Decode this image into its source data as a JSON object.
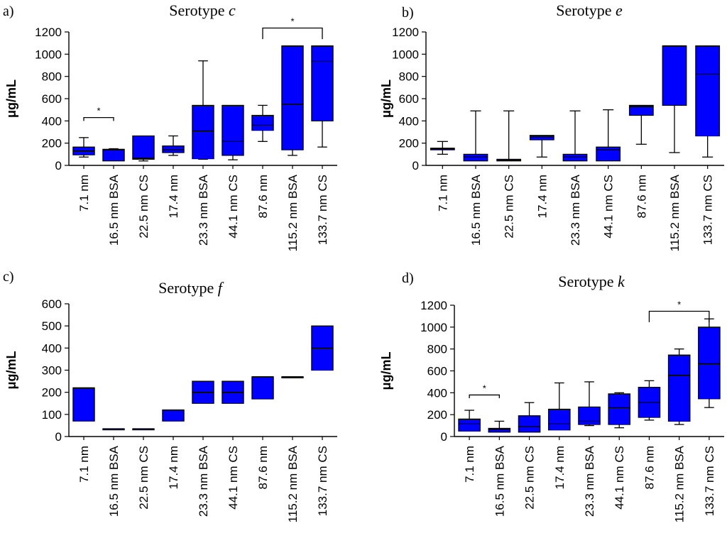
{
  "chart_data": [
    {
      "type": "box",
      "panel_label": "a)",
      "title_prefix": "Serotype ",
      "title_italic": "c",
      "ylabel": "μg/mL",
      "ylim": [
        0,
        1200
      ],
      "yticks": [
        "0",
        "200",
        "400",
        "600",
        "800",
        "1000",
        "1200"
      ],
      "categories": [
        "7.1 nm",
        "16.5 nm BSA",
        "22.5 nm CS",
        "17.4 nm",
        "23.3 nm BSA",
        "44.1 nm CS",
        "87.6 nm",
        "115.2 nm BSA",
        "133.7 nm CS"
      ],
      "boxes": [
        {
          "min": 75,
          "q1": 95,
          "median": 130,
          "q3": 165,
          "max": 250
        },
        {
          "min": 40,
          "q1": 40,
          "median": 140,
          "q3": 145,
          "max": 150
        },
        {
          "min": 40,
          "q1": 55,
          "median": 65,
          "q3": 265,
          "max": 265
        },
        {
          "min": 90,
          "q1": 115,
          "median": 140,
          "q3": 175,
          "max": 265
        },
        {
          "min": 55,
          "q1": 60,
          "median": 310,
          "q3": 540,
          "max": 940
        },
        {
          "min": 50,
          "q1": 90,
          "median": 215,
          "q3": 540,
          "max": 540
        },
        {
          "min": 215,
          "q1": 315,
          "median": 365,
          "q3": 450,
          "max": 540
        },
        {
          "min": 90,
          "q1": 140,
          "median": 550,
          "q3": 1075,
          "max": 1075
        },
        {
          "min": 165,
          "q1": 400,
          "median": 940,
          "q3": 1075,
          "max": 1075
        }
      ],
      "significance": [
        {
          "from": 0,
          "to": 1,
          "level": 430,
          "drop": 30,
          "label": "*"
        },
        {
          "from": 6,
          "to": 8,
          "level": 1235,
          "drop": 100,
          "label": "*"
        }
      ]
    },
    {
      "type": "box",
      "panel_label": "b)",
      "title_prefix": "Serotype ",
      "title_italic": "e",
      "ylabel": "μg/mL",
      "ylim": [
        0,
        1200
      ],
      "yticks": [
        "0",
        "200",
        "400",
        "600",
        "800",
        "1000",
        "1200"
      ],
      "categories": [
        "7.1 nm",
        "16.5 nm BSA",
        "22.5 nm CS",
        "17.4 nm",
        "23.3 nm BSA",
        "44.1 nm CS",
        "87.6 nm",
        "115.2 nm BSA",
        "133.7 nm CS"
      ],
      "boxes": [
        {
          "min": 100,
          "q1": 140,
          "median": 150,
          "q3": 155,
          "max": 215
        },
        {
          "min": 40,
          "q1": 40,
          "median": 75,
          "q3": 100,
          "max": 490
        },
        {
          "min": 40,
          "q1": 40,
          "median": 45,
          "q3": 55,
          "max": 490
        },
        {
          "min": 75,
          "q1": 230,
          "median": 255,
          "q3": 270,
          "max": 270
        },
        {
          "min": 40,
          "q1": 40,
          "median": 75,
          "q3": 100,
          "max": 490
        },
        {
          "min": 40,
          "q1": 40,
          "median": 140,
          "q3": 165,
          "max": 500
        },
        {
          "min": 190,
          "q1": 450,
          "median": 530,
          "q3": 540,
          "max": 540
        },
        {
          "min": 115,
          "q1": 540,
          "median": 1075,
          "q3": 1075,
          "max": 1075
        },
        {
          "min": 75,
          "q1": 265,
          "median": 825,
          "q3": 1075,
          "max": 1075
        }
      ],
      "significance": []
    },
    {
      "type": "box",
      "panel_label": "c)",
      "title_prefix": "Serotype ",
      "title_italic": "f",
      "ylabel": "μg/mL",
      "ylim": [
        0,
        600
      ],
      "yticks": [
        "0",
        "100",
        "200",
        "300",
        "400",
        "500",
        "600"
      ],
      "categories": [
        "7.1 nm",
        "16.5 nm BSA",
        "22.5 nm CS",
        "17.4 nm",
        "23.3 nm BSA",
        "44.1 nm CS",
        "87.6 nm",
        "115.2 nm BSA",
        "133.7 nm CS"
      ],
      "boxes": [
        {
          "min": 70,
          "q1": 70,
          "median": 220,
          "q3": 220,
          "max": 220
        },
        {
          "min": 35,
          "q1": 35,
          "median": 35,
          "q3": 35,
          "max": 35
        },
        {
          "min": 35,
          "q1": 35,
          "median": 35,
          "q3": 35,
          "max": 35
        },
        {
          "min": 70,
          "q1": 70,
          "median": 120,
          "q3": 120,
          "max": 120
        },
        {
          "min": 150,
          "q1": 150,
          "median": 200,
          "q3": 250,
          "max": 250
        },
        {
          "min": 150,
          "q1": 150,
          "median": 200,
          "q3": 250,
          "max": 250
        },
        {
          "min": 170,
          "q1": 170,
          "median": 270,
          "q3": 270,
          "max": 270
        },
        {
          "min": 270,
          "q1": 270,
          "median": 270,
          "q3": 270,
          "max": 270
        },
        {
          "min": 300,
          "q1": 300,
          "median": 400,
          "q3": 500,
          "max": 500
        }
      ],
      "significance": []
    },
    {
      "type": "box",
      "panel_label": "d)",
      "title_prefix": "Serotype ",
      "title_italic": "k",
      "ylabel": "μg/mL",
      "ylim": [
        0,
        1200
      ],
      "yticks": [
        "0",
        "200",
        "400",
        "600",
        "800",
        "1000",
        "1200"
      ],
      "categories": [
        "7.1 nm",
        "16.5 nm BSA",
        "22.5 nm CS",
        "17.4 nm",
        "23.3 nm BSA",
        "44.1 nm CS",
        "87.6 nm",
        "115.2 nm BSA",
        "133.7 nm CS"
      ],
      "boxes": [
        {
          "min": 50,
          "q1": 50,
          "median": 115,
          "q3": 160,
          "max": 240
        },
        {
          "min": 40,
          "q1": 40,
          "median": 65,
          "q3": 75,
          "max": 140
        },
        {
          "min": 40,
          "q1": 40,
          "median": 90,
          "q3": 190,
          "max": 310
        },
        {
          "min": 60,
          "q1": 60,
          "median": 115,
          "q3": 250,
          "max": 490
        },
        {
          "min": 100,
          "q1": 110,
          "median": 140,
          "q3": 270,
          "max": 500
        },
        {
          "min": 80,
          "q1": 110,
          "median": 265,
          "q3": 390,
          "max": 400
        },
        {
          "min": 150,
          "q1": 175,
          "median": 310,
          "q3": 450,
          "max": 510
        },
        {
          "min": 110,
          "q1": 140,
          "median": 560,
          "q3": 745,
          "max": 800
        },
        {
          "min": 265,
          "q1": 345,
          "median": 665,
          "q3": 1000,
          "max": 1075
        }
      ],
      "significance": [
        {
          "from": 0,
          "to": 1,
          "level": 380,
          "drop": 30,
          "label": "*"
        },
        {
          "from": 6,
          "to": 8,
          "level": 1145,
          "drop": 100,
          "label": "*"
        }
      ]
    }
  ],
  "colors": {
    "box_fill": "#0000ff",
    "line": "#000000"
  }
}
